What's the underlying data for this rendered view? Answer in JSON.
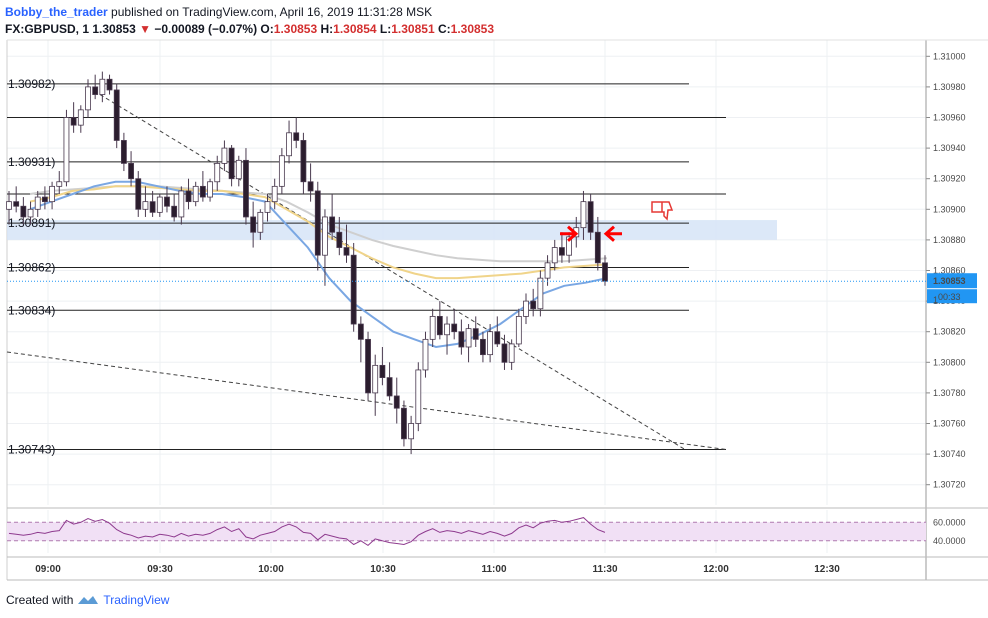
{
  "header": {
    "author": "Bobby_the_trader",
    "published": "published on TradingView.com, April 16, 2019 11:31:28 MSK",
    "symbol": "FX:GBPUSD, 1",
    "last": "1.30853",
    "change_arrow": "▼",
    "change": "−0.00089 (−0.07%)",
    "o_label": "O:",
    "o": "1.30853",
    "h_label": "H:",
    "h": "1.30854",
    "l_label": "L:",
    "l": "1.30851",
    "c_label": "C:",
    "c": "1.30853"
  },
  "footer": {
    "created_with": "Created with",
    "brand": "TradingView"
  },
  "colors": {
    "up_candle": "#ffffff",
    "down_candle": "#2b1d2e",
    "candle_border": "#4a3a4f",
    "ema_fast": "#7aa7e3",
    "ema_mid": "#f0d48a",
    "ema_slow": "#cfcfcf",
    "zone": "#d6e4f7",
    "price_label": "#2196f3",
    "rsi_line": "#8e3a8e",
    "rsi_band": "#f1e0f5",
    "arrows": "#ff0000",
    "thumb": "#e53935"
  },
  "chart_data": {
    "type": "candlestick",
    "price_axis_ticks": [
      "1.31000",
      "1.30980",
      "1.30960",
      "1.30940",
      "1.30920",
      "1.30900",
      "1.30880",
      "1.30860",
      "1.30840",
      "1.30820",
      "1.30800",
      "1.30780",
      "1.30760",
      "1.30740",
      "1.30720"
    ],
    "ylim": [
      1.3071,
      1.3101
    ],
    "time_ticks": [
      "09:00",
      "09:30",
      "10:00",
      "10:30",
      "11:00",
      "11:30",
      "12:00",
      "12:30"
    ],
    "levels": [
      {
        "label": "1.30982)",
        "value": 1.30982
      },
      {
        "label": "",
        "value": 1.3096
      },
      {
        "label": "1.30931)",
        "value": 1.30931
      },
      {
        "label": "",
        "value": 1.3091
      },
      {
        "label": "1.30891)",
        "value": 1.30891
      },
      {
        "label": "1.30862)",
        "value": 1.30862
      },
      {
        "label": "1.30834)",
        "value": 1.30834
      },
      {
        "label": "1.30743)",
        "value": 1.30743
      }
    ],
    "zone": [
      1.30882,
      1.30891
    ],
    "current_price": "1.30853",
    "countdown": "00:33",
    "partial_tick": "1",
    "rsi_axis": [
      "60.0000",
      "40.0000"
    ],
    "rsi_band": [
      40,
      60
    ],
    "candles": [
      [
        1.309,
        1.30912,
        1.3089,
        1.30905
      ],
      [
        1.30905,
        1.30915,
        1.30898,
        1.30902
      ],
      [
        1.30902,
        1.30908,
        1.3089,
        1.30895
      ],
      [
        1.30895,
        1.30905,
        1.3089,
        1.309
      ],
      [
        1.309,
        1.30912,
        1.30895,
        1.30908
      ],
      [
        1.30908,
        1.30915,
        1.309,
        1.30905
      ],
      [
        1.30905,
        1.30918,
        1.309,
        1.30915
      ],
      [
        1.30915,
        1.30925,
        1.3091,
        1.30918
      ],
      [
        1.30918,
        1.30965,
        1.30915,
        1.3096
      ],
      [
        1.3096,
        1.3097,
        1.3095,
        1.30955
      ],
      [
        1.30955,
        1.30968,
        1.3095,
        1.30965
      ],
      [
        1.30965,
        1.30985,
        1.3096,
        1.3098
      ],
      [
        1.3098,
        1.30988,
        1.30972,
        1.30975
      ],
      [
        1.30975,
        1.3099,
        1.3097,
        1.30985
      ],
      [
        1.30985,
        1.30988,
        1.30975,
        1.30978
      ],
      [
        1.30978,
        1.30982,
        1.3094,
        1.30945
      ],
      [
        1.30945,
        1.3095,
        1.30925,
        1.3093
      ],
      [
        1.3093,
        1.30938,
        1.30915,
        1.3092
      ],
      [
        1.3092,
        1.30925,
        1.30895,
        1.309
      ],
      [
        1.309,
        1.30915,
        1.30895,
        1.30905
      ],
      [
        1.30905,
        1.30912,
        1.30895,
        1.30898
      ],
      [
        1.30898,
        1.3091,
        1.30895,
        1.30908
      ],
      [
        1.30908,
        1.30915,
        1.30898,
        1.30902
      ],
      [
        1.30902,
        1.3091,
        1.30892,
        1.30895
      ],
      [
        1.30895,
        1.30915,
        1.3089,
        1.30912
      ],
      [
        1.30912,
        1.3092,
        1.309,
        1.30905
      ],
      [
        1.30905,
        1.30918,
        1.30902,
        1.30915
      ],
      [
        1.30915,
        1.30925,
        1.30905,
        1.30908
      ],
      [
        1.30908,
        1.3092,
        1.30905,
        1.30918
      ],
      [
        1.30918,
        1.30935,
        1.30912,
        1.3093
      ],
      [
        1.3093,
        1.30945,
        1.30925,
        1.3094
      ],
      [
        1.3094,
        1.30942,
        1.30915,
        1.3092
      ],
      [
        1.3092,
        1.30935,
        1.30915,
        1.30932
      ],
      [
        1.30932,
        1.3094,
        1.3089,
        1.30895
      ],
      [
        1.30895,
        1.30905,
        1.30875,
        1.30885
      ],
      [
        1.30885,
        1.309,
        1.3088,
        1.30898
      ],
      [
        1.30898,
        1.3091,
        1.30892,
        1.30905
      ],
      [
        1.30905,
        1.3092,
        1.309,
        1.30915
      ],
      [
        1.30915,
        1.3094,
        1.3091,
        1.30935
      ],
      [
        1.30935,
        1.30958,
        1.3093,
        1.3095
      ],
      [
        1.3095,
        1.3096,
        1.3094,
        1.30945
      ],
      [
        1.30945,
        1.3095,
        1.3091,
        1.30918
      ],
      [
        1.30918,
        1.3093,
        1.30905,
        1.30912
      ],
      [
        1.30912,
        1.30918,
        1.3086,
        1.3087
      ],
      [
        1.3087,
        1.309,
        1.3085,
        1.30895
      ],
      [
        1.30895,
        1.3091,
        1.3088,
        1.30885
      ],
      [
        1.30885,
        1.30895,
        1.3087,
        1.30875
      ],
      [
        1.30875,
        1.3089,
        1.30865,
        1.3087
      ],
      [
        1.3087,
        1.30878,
        1.3082,
        1.30825
      ],
      [
        1.30825,
        1.3083,
        1.308,
        1.30815
      ],
      [
        1.30815,
        1.3082,
        1.30775,
        1.3078
      ],
      [
        1.3078,
        1.30805,
        1.30765,
        1.30798
      ],
      [
        1.30798,
        1.3081,
        1.30785,
        1.3079
      ],
      [
        1.3079,
        1.308,
        1.30775,
        1.30778
      ],
      [
        1.30778,
        1.3079,
        1.3076,
        1.3077
      ],
      [
        1.3077,
        1.30775,
        1.30745,
        1.3075
      ],
      [
        1.3075,
        1.30765,
        1.3074,
        1.3076
      ],
      [
        1.3076,
        1.308,
        1.30755,
        1.30795
      ],
      [
        1.30795,
        1.3082,
        1.3079,
        1.30815
      ],
      [
        1.30815,
        1.30835,
        1.3081,
        1.3083
      ],
      [
        1.3083,
        1.3084,
        1.30815,
        1.30818
      ],
      [
        1.30818,
        1.3083,
        1.30805,
        1.30825
      ],
      [
        1.30825,
        1.30835,
        1.30815,
        1.3082
      ],
      [
        1.3082,
        1.30828,
        1.30805,
        1.3081
      ],
      [
        1.3081,
        1.30825,
        1.308,
        1.30822
      ],
      [
        1.30822,
        1.3083,
        1.3081,
        1.30815
      ],
      [
        1.30815,
        1.3082,
        1.308,
        1.30805
      ],
      [
        1.30805,
        1.30825,
        1.308,
        1.3082
      ],
      [
        1.3082,
        1.3083,
        1.3081,
        1.30812
      ],
      [
        1.30812,
        1.30818,
        1.30795,
        1.308
      ],
      [
        1.308,
        1.30815,
        1.30795,
        1.30812
      ],
      [
        1.30812,
        1.30835,
        1.3081,
        1.3083
      ],
      [
        1.3083,
        1.30845,
        1.30825,
        1.3084
      ],
      [
        1.3084,
        1.30848,
        1.3083,
        1.30835
      ],
      [
        1.30835,
        1.3086,
        1.3083,
        1.30855
      ],
      [
        1.30855,
        1.3087,
        1.3085,
        1.30865
      ],
      [
        1.30865,
        1.3088,
        1.3086,
        1.30875
      ],
      [
        1.30875,
        1.30885,
        1.30865,
        1.3087
      ],
      [
        1.3087,
        1.30885,
        1.30865,
        1.30882
      ],
      [
        1.30882,
        1.30895,
        1.30875,
        1.30888
      ],
      [
        1.30888,
        1.30912,
        1.3088,
        1.30905
      ],
      [
        1.30905,
        1.3091,
        1.3088,
        1.30885
      ],
      [
        1.30885,
        1.30895,
        1.3086,
        1.30865
      ],
      [
        1.30865,
        1.3087,
        1.3085,
        1.30853
      ]
    ],
    "rsi": [
      48,
      47,
      46,
      47,
      49,
      48,
      50,
      51,
      62,
      58,
      60,
      64,
      61,
      63,
      59,
      52,
      48,
      46,
      43,
      45,
      44,
      47,
      46,
      44,
      48,
      45,
      47,
      46,
      48,
      52,
      55,
      50,
      53,
      44,
      42,
      46,
      48,
      50,
      55,
      58,
      55,
      49,
      48,
      41,
      47,
      45,
      43,
      42,
      36,
      40,
      35,
      42,
      40,
      38,
      37,
      36,
      39,
      46,
      50,
      53,
      49,
      51,
      50,
      48,
      51,
      49,
      47,
      50,
      48,
      45,
      48,
      54,
      57,
      54,
      59,
      61,
      62,
      60,
      61,
      63,
      65,
      58,
      52,
      49
    ],
    "ema_fast": [
      1.309,
      1.30905,
      1.3091,
      1.30915,
      1.30918,
      1.30918,
      1.30915,
      1.30912,
      1.3091,
      1.3091,
      1.30908,
      1.30905,
      1.3089,
      1.30875,
      1.30855,
      1.3084,
      1.3083,
      1.3082,
      1.30815,
      1.3081,
      1.30812,
      1.30818,
      1.30825,
      1.30835,
      1.30845,
      1.3085,
      1.30852,
      1.30855
    ],
    "ema_mid": [
      1.30905,
      1.30908,
      1.30912,
      1.30913,
      1.30915,
      1.30915,
      1.30914,
      1.30913,
      1.30912,
      1.30912,
      1.3091,
      1.30908,
      1.309,
      1.30892,
      1.30882,
      1.30875,
      1.30868,
      1.30862,
      1.30858,
      1.30855,
      1.30855,
      1.30856,
      1.30857,
      1.30858,
      1.3086,
      1.30862,
      1.30863,
      1.30864
    ],
    "ema_slow": [
      1.3091,
      1.30912,
      1.30913,
      1.30914,
      1.30915,
      1.30915,
      1.30915,
      1.30914,
      1.30913,
      1.30912,
      1.30911,
      1.3091,
      1.30905,
      1.30898,
      1.3089,
      1.30885,
      1.3088,
      1.30876,
      1.30873,
      1.3087,
      1.30868,
      1.30867,
      1.30866,
      1.30866,
      1.30866,
      1.30866,
      1.30867,
      1.30868
    ]
  }
}
